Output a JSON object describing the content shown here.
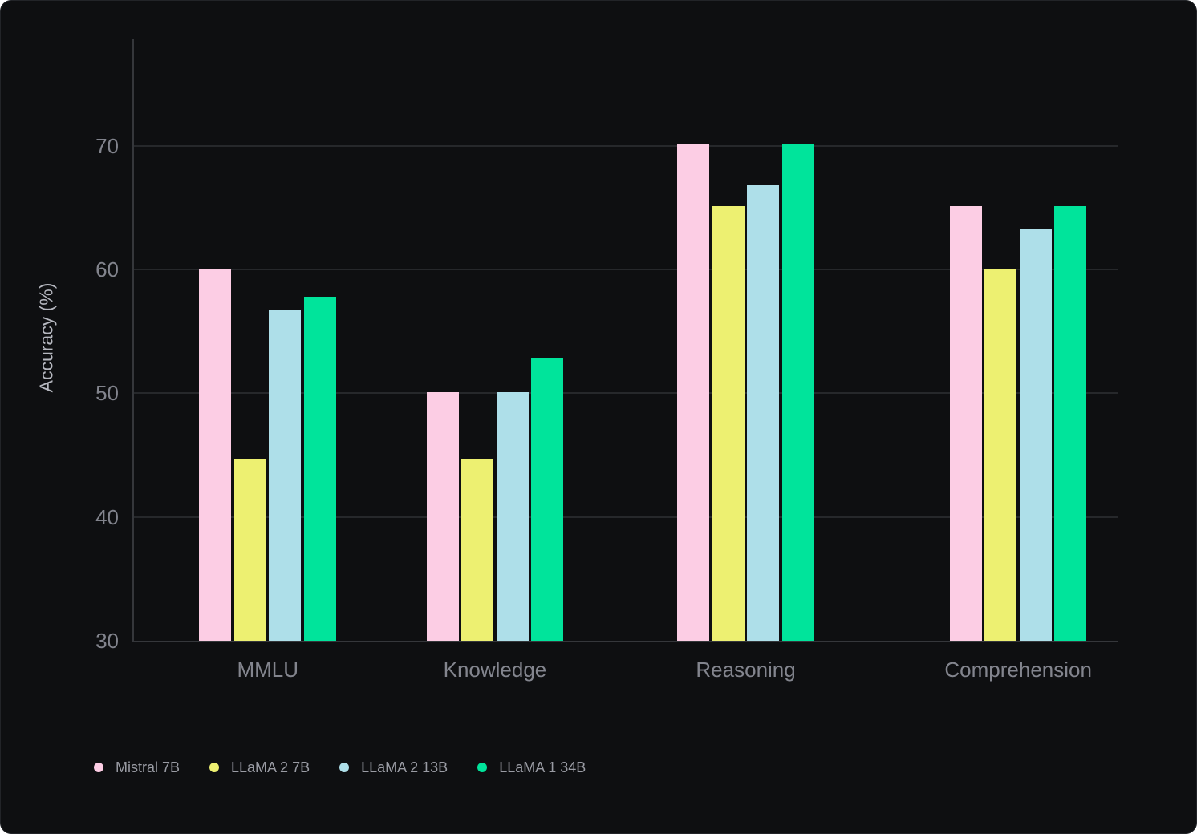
{
  "chart_data": {
    "type": "bar",
    "title": "",
    "categories": [
      "MMLU",
      "Knowledge",
      "Reasoning",
      "Comprehension"
    ],
    "series": [
      {
        "name": "Mistral 7B",
        "color": "#fccde4",
        "values": [
          60.1,
          50.1,
          70.1,
          65.1
        ]
      },
      {
        "name": "LLaMA 2 7B",
        "color": "#edf071",
        "values": [
          44.7,
          44.7,
          65.1,
          60.1
        ]
      },
      {
        "name": "LLaMA 2 13B",
        "color": "#aedfe9",
        "values": [
          56.7,
          50.1,
          66.8,
          63.3
        ]
      },
      {
        "name": "LLaMA 1 34B",
        "color": "#00e49b",
        "values": [
          57.8,
          52.9,
          70.1,
          65.1
        ]
      }
    ],
    "xlabel": "",
    "ylabel": "Accuracy (%)",
    "ylim": [
      30,
      78.6
    ],
    "yticks": [
      30,
      40,
      50,
      60,
      70
    ],
    "grid": true,
    "legend_position": "bottom-left"
  },
  "colors": {
    "card_background": "#0e0f11",
    "card_border": "#222428",
    "grid_line": "#26282b",
    "axis_line": "#35373b",
    "tick_text": "#82848d",
    "category_text": "#83858e",
    "legend_text": "#999ba3",
    "axis_title_text": "#b6b8c0"
  }
}
